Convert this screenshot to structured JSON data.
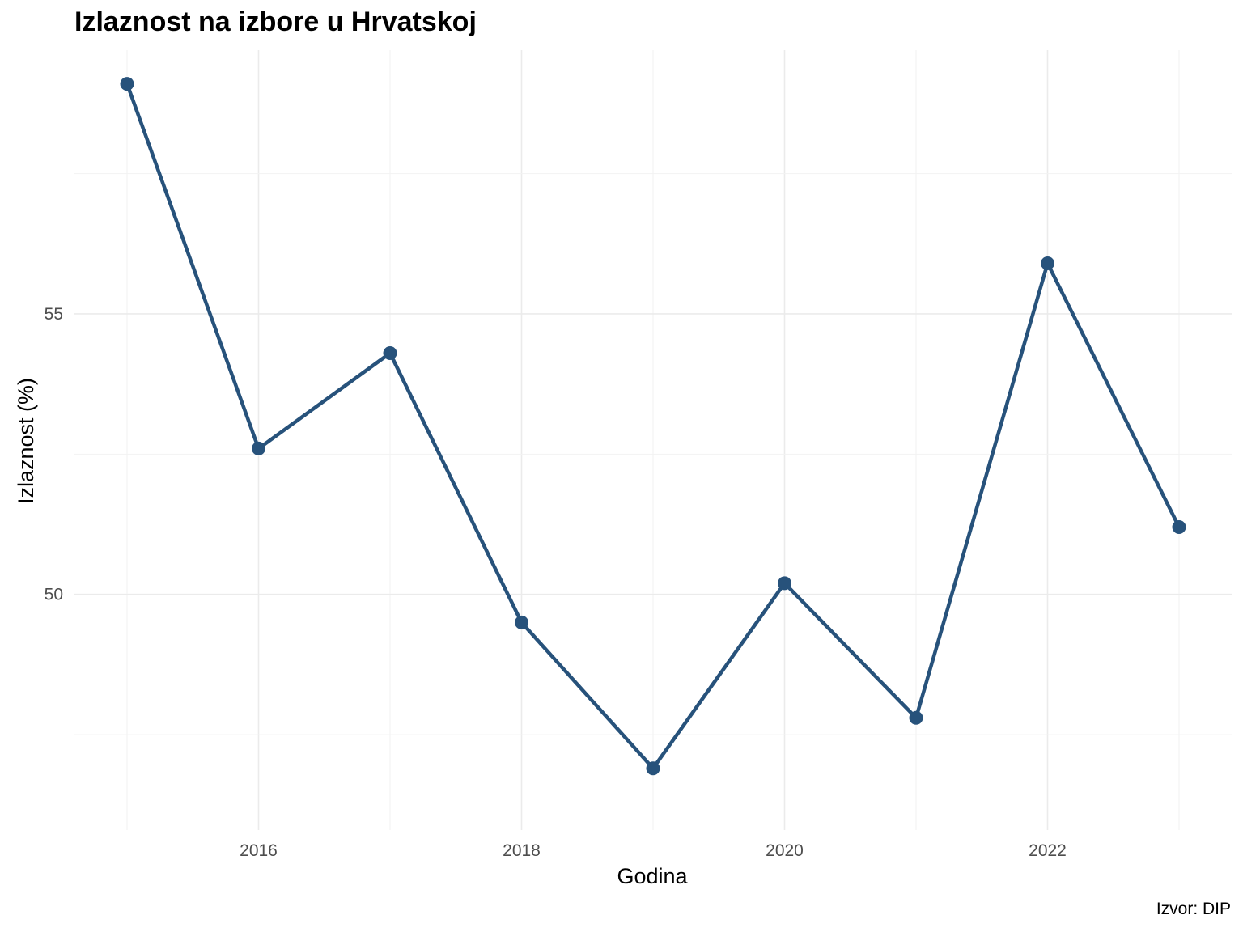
{
  "chart_data": {
    "type": "line",
    "title": "Izlaznost na izbore u Hrvatskoj",
    "caption": "Izvor: DIP",
    "xlabel": "Godina",
    "ylabel": "Izlaznost (%)",
    "x": [
      2015,
      2016,
      2017,
      2018,
      2019,
      2020,
      2021,
      2022,
      2023
    ],
    "series": [
      {
        "values": [
          59.1,
          52.6,
          54.3,
          49.5,
          46.9,
          50.2,
          47.8,
          55.9,
          51.2
        ]
      }
    ],
    "xticks": [
      2016,
      2018,
      2020,
      2022
    ],
    "xtick_labels": [
      "2016",
      "2018",
      "2020",
      "2022"
    ],
    "yticks": [
      50,
      55
    ],
    "ytick_labels": [
      "50",
      "55"
    ],
    "xlim": [
      2014.6,
      2023.4
    ],
    "ylim": [
      45.8,
      59.7
    ],
    "grid": true,
    "line_color": "#27527B"
  }
}
